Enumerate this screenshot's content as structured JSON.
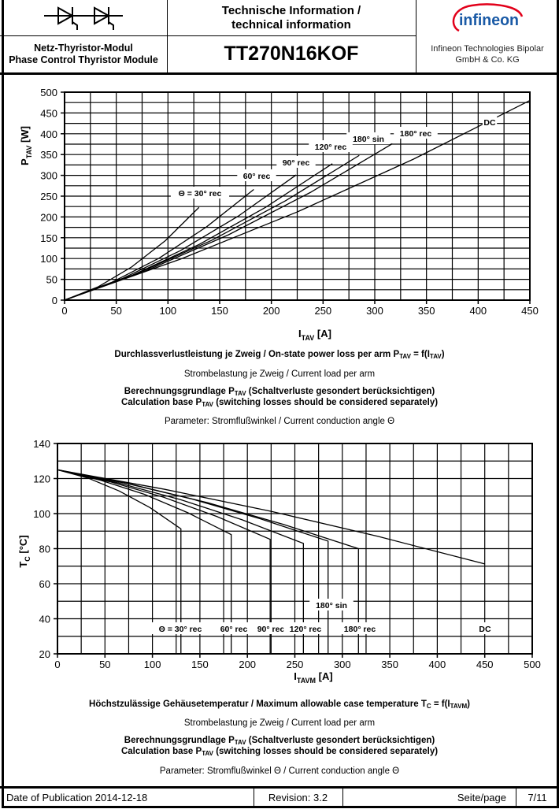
{
  "header": {
    "tech_info_de": "Technische Information /",
    "tech_info_en": "technical information",
    "subtitle_de": "Netz-Thyristor-Modul",
    "subtitle_en": "Phase Control Thyristor Module",
    "part_number": "TT270N16KOF",
    "logo_text": "infineon",
    "company_line1": "Infineon Technologies Bipolar",
    "company_line2": "GmbH & Co. KG",
    "symbol_icon": "dual-thyristor-symbol"
  },
  "chart1_text": {
    "title_a": "Durchlassverlustleistung je Zweig / On-state power loss per arm P",
    "title_sub1": "TAV",
    "title_b": " = f(I",
    "title_sub2": "TAV",
    "title_c": ")",
    "load": "Strombelastung je Zweig / Current load per arm",
    "calc1_a": "Berechnungsgrundlage P",
    "calc1_sub": "TAV",
    "calc1_b": " (Schaltverluste gesondert berücksichtigen)",
    "calc2_a": "Calculation base P",
    "calc2_sub": "TAV",
    "calc2_b": " (switching losses should be considered separately)",
    "param": "Parameter: Stromflußwinkel / Current conduction angle Θ"
  },
  "chart2_text": {
    "title_a": "Höchstzulässige Gehäusetemperatur / Maximum allowable case temperature T",
    "title_sub1": "C",
    "title_b": " = f(I",
    "title_sub2": "TAVM",
    "title_c": ")",
    "load": "Strombelastung je Zweig / Current load per arm",
    "calc1_a": "Berechnungsgrundlage P",
    "calc1_sub": "TAV",
    "calc1_b": " (Schaltverluste gesondert berücksichtigen)",
    "calc2_a": "Calculation base P",
    "calc2_sub": "TAV",
    "calc2_b": " (switching losses should be considered separately)",
    "param": "Parameter: Stromflußwinkel Θ  / Current conduction angle Θ"
  },
  "chart_data": [
    {
      "type": "line",
      "xlabel": "I",
      "xlabel_sub": "TAV",
      "xlabel_unit": " [A]",
      "ylabel": "P",
      "ylabel_sub": "TAV",
      "ylabel_unit": " [W]",
      "xlim": [
        0,
        450
      ],
      "ylim": [
        0,
        500
      ],
      "xticks": [
        0,
        50,
        100,
        150,
        200,
        250,
        300,
        350,
        400,
        450
      ],
      "yticks": [
        0,
        50,
        100,
        150,
        200,
        250,
        300,
        350,
        400,
        450,
        500
      ],
      "grid": true,
      "series": [
        {
          "name": "Θ = 30° rec",
          "x": [
            0,
            32.5,
            65,
            97.5,
            130
          ],
          "y": [
            0,
            32,
            80,
            143,
            223
          ]
        },
        {
          "name": "60° rec",
          "x": [
            0,
            45.75,
            91.5,
            137.25,
            183
          ],
          "y": [
            0,
            43,
            101,
            176,
            266
          ]
        },
        {
          "name": "90° rec",
          "x": [
            0,
            56,
            112,
            168,
            224
          ],
          "y": [
            0,
            52,
            119,
            202,
            301
          ]
        },
        {
          "name": "120° rec",
          "x": [
            0,
            64.75,
            129.5,
            194.25,
            259
          ],
          "y": [
            0,
            59,
            133,
            223,
            328
          ]
        },
        {
          "name": "180° sin",
          "x": [
            0,
            71.25,
            142.5,
            213.75,
            285
          ],
          "y": [
            0,
            65,
            144,
            239,
            348
          ]
        },
        {
          "name": "180° rec",
          "x": [
            0,
            79.25,
            158.5,
            237.75,
            317
          ],
          "y": [
            0,
            71,
            157,
            259,
            376
          ]
        },
        {
          "name": "DC",
          "x": [
            0,
            112.5,
            225,
            337.5,
            450
          ],
          "y": [
            0,
            99,
            212,
            339,
            480
          ]
        }
      ]
    },
    {
      "type": "line",
      "xlabel": "I",
      "xlabel_sub": "TAVM",
      "xlabel_unit": " [A]",
      "ylabel": "T",
      "ylabel_sub": "C",
      "ylabel_unit": " [°C]",
      "xlim": [
        0,
        500
      ],
      "ylim": [
        20,
        140
      ],
      "xticks": [
        0,
        50,
        100,
        150,
        200,
        250,
        300,
        350,
        400,
        450,
        500
      ],
      "yticks": [
        20,
        40,
        60,
        80,
        100,
        120,
        140
      ],
      "grid": true,
      "series": [
        {
          "name": "Θ = 30° rec",
          "x": [
            0,
            32.5,
            65,
            97.5,
            130,
            130
          ],
          "y": [
            125,
            120.2,
            112.9,
            103.4,
            91.3,
            20
          ]
        },
        {
          "name": "60° rec",
          "x": [
            0,
            45.75,
            91.5,
            137.25,
            183,
            183
          ],
          "y": [
            125,
            119.0,
            111.0,
            100.5,
            88,
            20
          ]
        },
        {
          "name": "90° rec",
          "x": [
            0,
            56,
            112,
            168,
            224,
            224
          ],
          "y": [
            125,
            118.1,
            109.3,
            98.3,
            85.3,
            20
          ]
        },
        {
          "name": "120° rec",
          "x": [
            0,
            64.75,
            129.5,
            194.25,
            259,
            259
          ],
          "y": [
            125,
            117.4,
            108.0,
            96.5,
            83,
            20
          ]
        },
        {
          "name": "180° sin",
          "x": [
            0,
            71.25,
            142.5,
            213.75,
            285,
            285
          ],
          "y": [
            125,
            117.4,
            108.2,
            97.0,
            84.3,
            20
          ]
        },
        {
          "name": "180° rec",
          "x": [
            0,
            79.25,
            158.5,
            237.75,
            317,
            317
          ],
          "y": [
            125,
            116.5,
            106.2,
            93.9,
            80,
            20
          ]
        },
        {
          "name": "DC",
          "x": [
            0,
            112.5,
            225,
            337.5,
            450
          ],
          "y": [
            125,
            113.9,
            101.3,
            87.0,
            71.3
          ]
        }
      ]
    }
  ],
  "footer": {
    "publication": "Date of Publication 2014-12-18",
    "revision": "Revision: 3.2",
    "page_label": "Seite/page",
    "page_number": "7/11"
  }
}
